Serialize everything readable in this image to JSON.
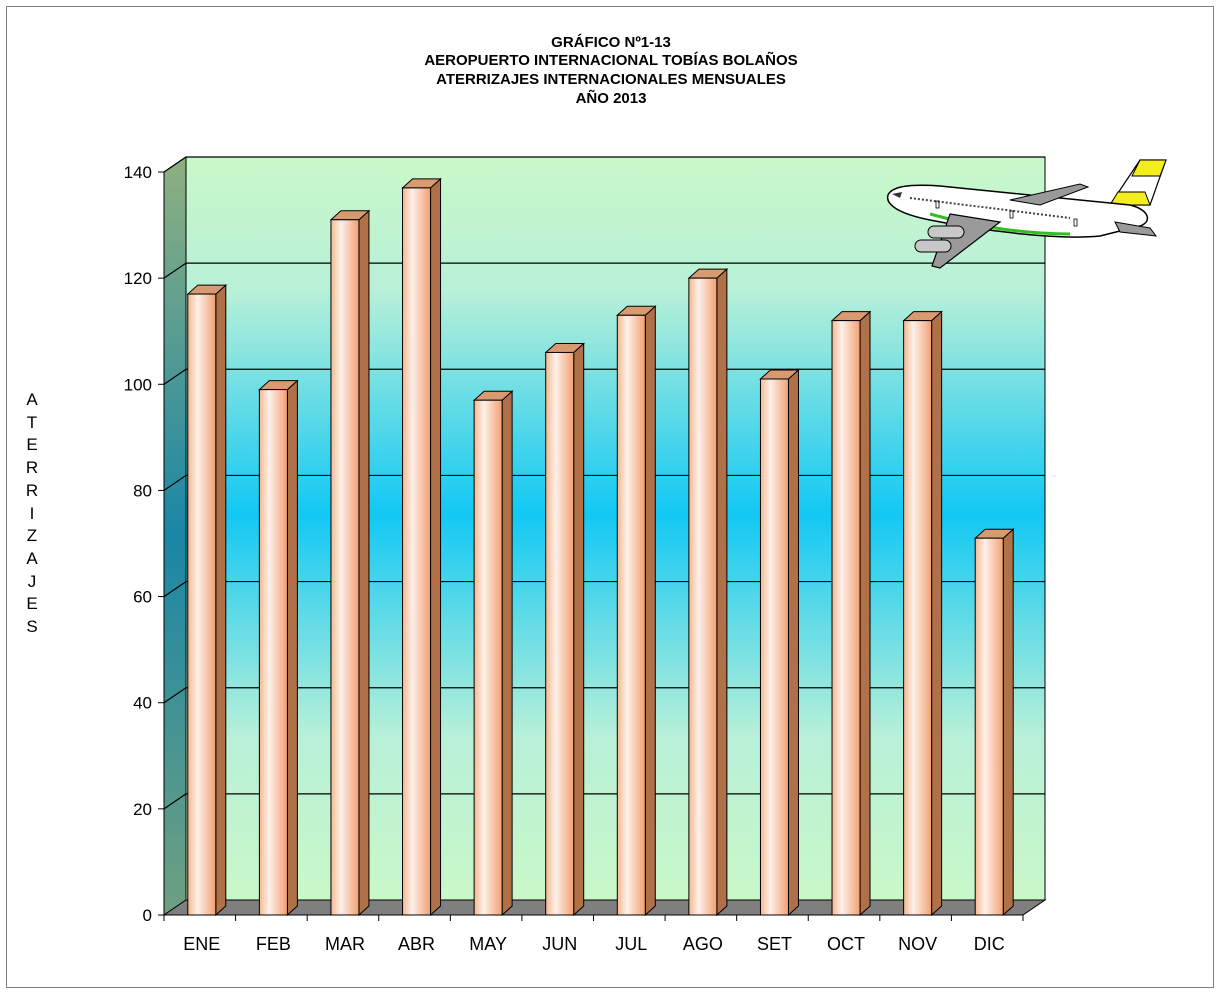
{
  "chart_data": {
    "type": "bar",
    "title_lines": [
      "GRÁFICO Nº1-13",
      "AEROPUERTO INTERNACIONAL TOBÍAS BOLAÑOS",
      "ATERRIZAJES INTERNACIONALES MENSUALES",
      "AÑO 2013"
    ],
    "ylabel": "ATERRIZAJES",
    "xlabel": "",
    "categories": [
      "ENE",
      "FEB",
      "MAR",
      "ABR",
      "MAY",
      "JUN",
      "JUL",
      "AGO",
      "SET",
      "OCT",
      "NOV",
      "DIC"
    ],
    "values": [
      117,
      99,
      131,
      137,
      97,
      106,
      113,
      120,
      101,
      112,
      112,
      71
    ],
    "ylim": [
      0,
      140
    ],
    "yticks": [
      0,
      20,
      40,
      60,
      80,
      100,
      120,
      140
    ],
    "grid": true,
    "legend": "none",
    "colors": {
      "bar_front_light": "#fdeee6",
      "bar_front_dark": "#f0a070",
      "bar_side": "#b07048",
      "bar_top": "#d89a70",
      "wall_top": "#c9f8c8",
      "wall_middle": "#12c8f4",
      "floor": "#7f7f7f",
      "side_wall": "#2f8ea8",
      "gridline": "#000000"
    }
  },
  "decoration": {
    "icon": "airplane-icon"
  }
}
